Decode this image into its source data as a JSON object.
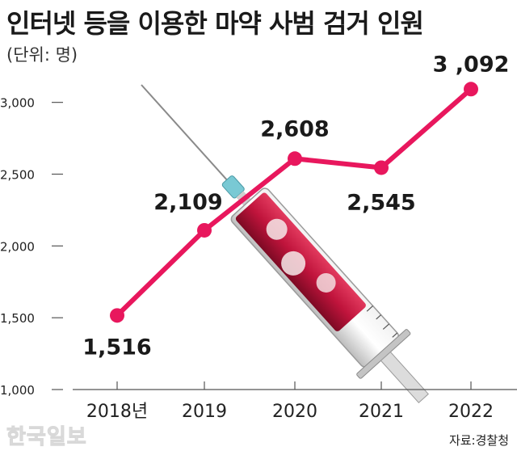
{
  "title": "인터넷 등을 이용한 마약 사범 검거 인원",
  "unit": "(단위: 명)",
  "source": "자료:경찰청",
  "logo": "한국일보",
  "colors": {
    "line": "#e8175d",
    "needle": "#8a8a8a",
    "barrel_liquid": "#c0143c",
    "needle_hub": "#79c9d4"
  },
  "chart_data": {
    "type": "line",
    "title": "인터넷 등을 이용한 마약 사범 검거 인원",
    "xlabel": "",
    "ylabel": "",
    "categories": [
      "2018년",
      "2019",
      "2020",
      "2021",
      "2022"
    ],
    "series": [
      {
        "values": [
          1516,
          2109,
          2608,
          2545,
          3092
        ]
      }
    ],
    "data_labels": [
      "1,516",
      "2,109",
      "2,608",
      "2,545",
      "3 ,092"
    ],
    "yticks": [
      1000,
      1500,
      2000,
      2500,
      3000
    ],
    "ytick_labels": [
      "1,000",
      "1,500",
      "2,000",
      "2,500",
      "3,000"
    ],
    "ylim": [
      1000,
      3150
    ],
    "grid": false,
    "legend": "none"
  }
}
